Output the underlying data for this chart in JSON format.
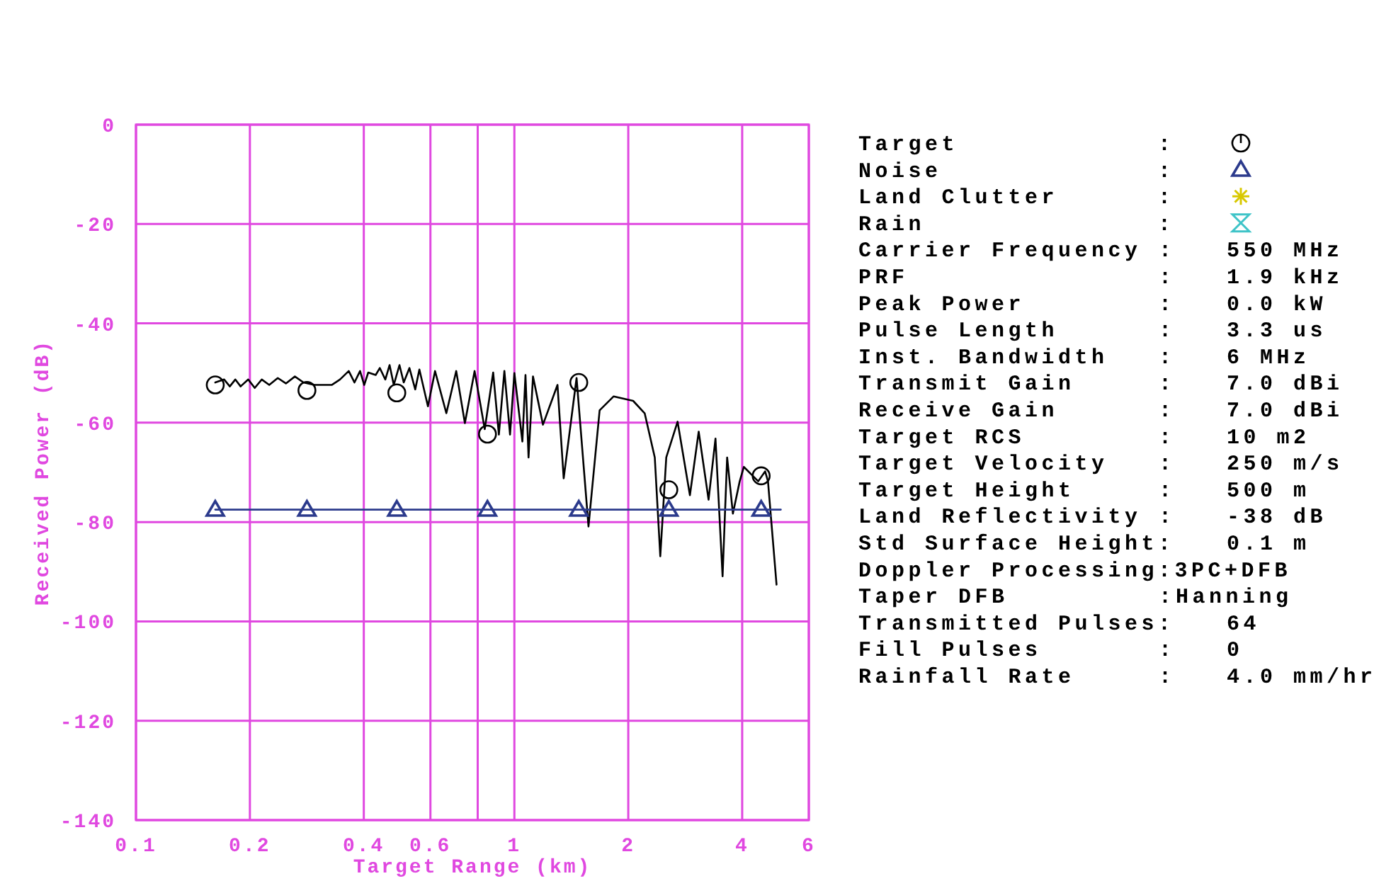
{
  "chart_data": {
    "type": "line",
    "xlabel": "Target Range (km)",
    "ylabel": "Received Power (dB)",
    "log": "x",
    "grid": true,
    "xlim": [
      0.1,
      6
    ],
    "ylim": [
      -140,
      0
    ],
    "xticks": [
      0.1,
      0.2,
      0.4,
      0.6,
      {
        "value": 0.8,
        "label": null
      },
      1,
      2,
      4,
      6
    ],
    "yticks": [
      0,
      -20,
      -40,
      -60,
      -80,
      -100,
      -120,
      -140
    ],
    "series": [
      {
        "color": "#000000",
        "marker": "none",
        "x": [
          0.162,
          0.171,
          0.177,
          0.183,
          0.189,
          0.198,
          0.206,
          0.215,
          0.225,
          0.237,
          0.249,
          0.263,
          0.277,
          0.296,
          0.312,
          0.329,
          0.346,
          0.365,
          0.378,
          0.391,
          0.401,
          0.411,
          0.43,
          0.441,
          0.456,
          0.468,
          0.48,
          0.497,
          0.51,
          0.528,
          0.547,
          0.561,
          0.591,
          0.617,
          0.661,
          0.702,
          0.74,
          0.785,
          0.835,
          0.879,
          0.91,
          0.941,
          0.974,
          1.0,
          1.05,
          1.07,
          1.09,
          1.12,
          1.19,
          1.3,
          1.35,
          1.46,
          1.57,
          1.68,
          1.83,
          2.06,
          2.21,
          2.35,
          2.43,
          2.52,
          2.7,
          2.91,
          3.07,
          3.26,
          3.4,
          3.55,
          3.65,
          3.78,
          3.94,
          4.04,
          4.41,
          4.6,
          4.68,
          4.93
        ],
        "values": [
          -51.9,
          -51.3,
          -52.7,
          -51.3,
          -52.7,
          -51.3,
          -53,
          -51.3,
          -52.4,
          -51,
          -52.1,
          -50.7,
          -51.9,
          -52.4,
          -52.4,
          -52.4,
          -51.3,
          -49.6,
          -51.9,
          -49.6,
          -52.4,
          -49.9,
          -50.4,
          -49,
          -51.3,
          -48.4,
          -52.4,
          -48.4,
          -51.9,
          -49,
          -53.3,
          -49.3,
          -56.7,
          -49.6,
          -58.1,
          -49.6,
          -60.1,
          -49.6,
          -61.3,
          -49.9,
          -62.4,
          -49.6,
          -62.4,
          -50,
          -63.8,
          -50.4,
          -67,
          -50.7,
          -60.4,
          -52.4,
          -71.2,
          -51,
          -80.9,
          -57.5,
          -54.7,
          -55.6,
          -58.1,
          -67,
          -86.9,
          -67,
          -59.8,
          -74.6,
          -61.8,
          -75.5,
          -63.2,
          -90.9,
          -67,
          -78.3,
          -71.8,
          -68.9,
          -71.8,
          -69.8,
          -71.8,
          -92.6
        ]
      },
      {
        "type": "scatter",
        "color": "#000000",
        "marker": "circle",
        "x": [
          0.162,
          0.283,
          0.489,
          0.849,
          1.48,
          2.56,
          4.49
        ],
        "values": [
          -52.4,
          -53.5,
          -54,
          -62.3,
          -51.9,
          -73.5,
          -70.7
        ]
      },
      {
        "color": "#2b3a8c",
        "marker": "none",
        "x": [
          0.162,
          5.06
        ],
        "values": [
          -77.5,
          -77.5
        ]
      },
      {
        "type": "scatter",
        "color": "#2b3a8c",
        "marker": "triangle",
        "x": [
          0.162,
          0.283,
          0.489,
          0.849,
          1.48,
          2.56,
          4.49
        ],
        "values": [
          -77.5,
          -77.5,
          -77.5,
          -77.5,
          -77.5,
          -77.5,
          -77.5
        ]
      }
    ],
    "annotations": [
      "Target            :",
      "Noise             :",
      "Land Clutter      :",
      "Rain              :",
      "Carrier Frequency : 550 MHz",
      "PRF : 1.9 kHz",
      "Peak Power : 0.0 kW",
      "Pulse Length : 3.3 us",
      "Inst. Bandwidth : 6 MHz",
      "Transmit Gain : 7.0 dBi",
      "Receive Gain : 7.0 dBi",
      "Target RCS : 10 m2",
      "Target Velocity : 250 m/s",
      "Target Height : 500 m",
      "Land Reflectivity : -38 dB",
      "Std Surface Height: 0.1 m",
      "Doppler Processing:3PC+DFB",
      "Taper DFB :Hanning",
      "Transmitted Pulses: 64",
      "Fill Pulses : 0",
      "Rainfall Rate : 4.0 mm/hr"
    ]
  }
}
